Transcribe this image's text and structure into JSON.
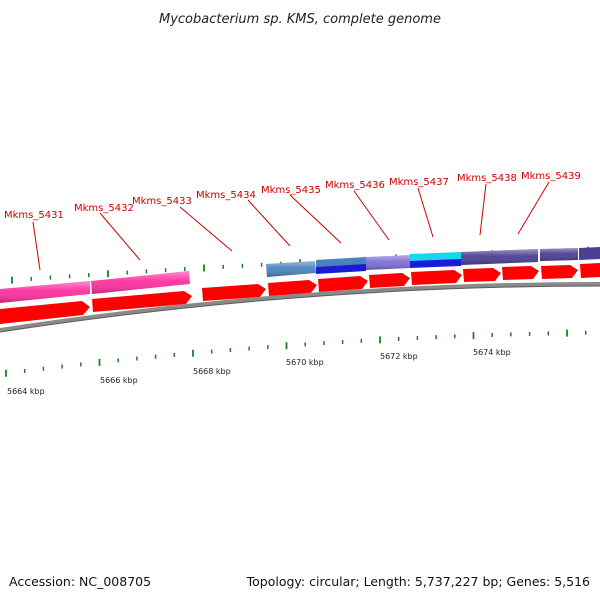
{
  "title": "Mycobacterium sp. KMS, complete genome",
  "footer": {
    "accession": "Accession: NC_008705",
    "summary": "Topology: circular; Length: 5,737,227 bp; Genes: 5,516"
  },
  "colors": {
    "cds": "#ff0000",
    "pink": "#ff2fa0",
    "steel": "#4a82bd",
    "blue": "#1b1bd8",
    "purple": "#7b6fd6",
    "cyan": "#19d6f0",
    "indigo": "#4a3f92",
    "tick": "#1f7f1f",
    "backbone": "#8a8a8a",
    "label": "#cc0000"
  },
  "gene_labels": [
    {
      "id": "gene-label-mkms-5431",
      "text": "Mkms_5431"
    },
    {
      "id": "gene-label-mkms-5432",
      "text": "Mkms_5432"
    },
    {
      "id": "gene-label-mkms-5433",
      "text": "Mkms_5433"
    },
    {
      "id": "gene-label-mkms-5434",
      "text": "Mkms_5434"
    },
    {
      "id": "gene-label-mkms-5435",
      "text": "Mkms_5435"
    },
    {
      "id": "gene-label-mkms-5436",
      "text": "Mkms_5436"
    },
    {
      "id": "gene-label-mkms-5437",
      "text": "Mkms_5437"
    },
    {
      "id": "gene-label-mkms-5438",
      "text": "Mkms_5438"
    },
    {
      "id": "gene-label-mkms-5439",
      "text": "Mkms_5439"
    }
  ],
  "kbp_labels": [
    {
      "id": "kbp-label-5664",
      "text": "5664 kbp"
    },
    {
      "id": "kbp-label-5666",
      "text": "5666 kbp"
    },
    {
      "id": "kbp-label-5668",
      "text": "5668 kbp"
    },
    {
      "id": "kbp-label-5670",
      "text": "5670 kbp"
    },
    {
      "id": "kbp-label-5672",
      "text": "5672 kbp"
    },
    {
      "id": "kbp-label-5674",
      "text": "5674 kbp"
    }
  ]
}
